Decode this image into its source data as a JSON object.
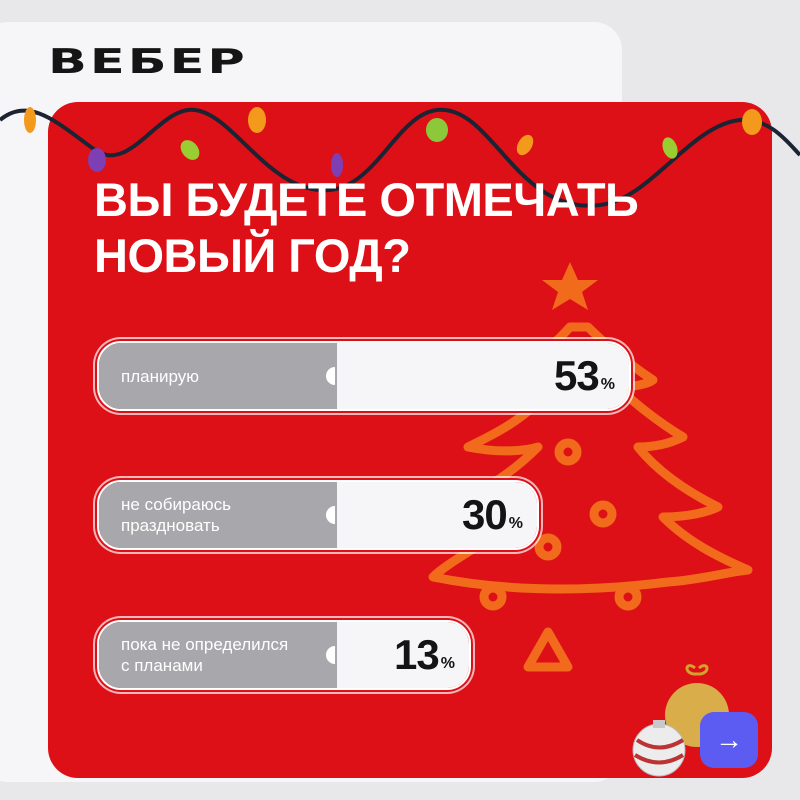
{
  "brand": {
    "logo": "ВЕБЕР"
  },
  "poll": {
    "question_line1": "ВЫ БУДЕТЕ ОТМЕЧАТЬ",
    "question_line2": "НОВЫЙ ГОД?"
  },
  "chart_data": {
    "type": "bar",
    "orientation": "horizontal",
    "title": "ВЫ БУДЕТЕ ОТМЕЧАТЬ НОВЫЙ ГОД?",
    "categories": [
      "планирую",
      "не собираюсь праздновать",
      "пока не определился с планами"
    ],
    "category_lines": [
      [
        "планирую"
      ],
      [
        "не собираюсь",
        "праздновать"
      ],
      [
        "пока не определился",
        "с планами"
      ]
    ],
    "values": [
      53,
      30,
      13
    ],
    "value_labels": [
      "53",
      "30",
      "13"
    ],
    "unit": "%"
  },
  "nav": {
    "next_icon": "arrow-right-icon",
    "next_glyph": "→"
  },
  "colors": {
    "accent": "#dc1016",
    "bar_label_bg": "#a8a7ab",
    "bar_value_bg": "#f6f6f9",
    "button": "#5c5cf2",
    "tree": "#f26a1b"
  }
}
